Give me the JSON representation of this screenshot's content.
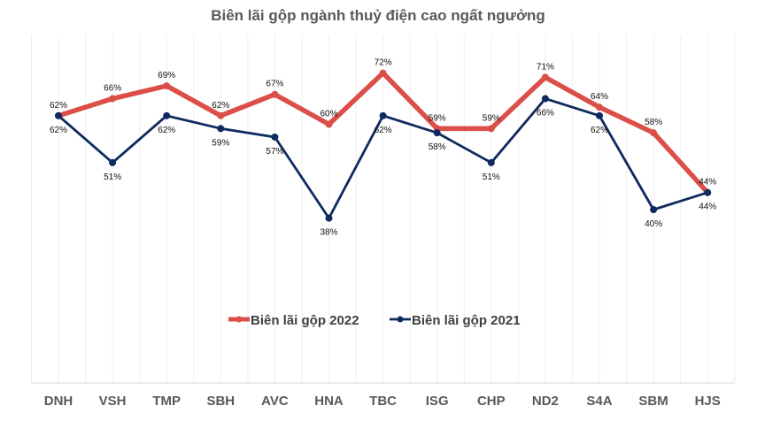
{
  "chart_data": {
    "type": "line",
    "title": "Biên lãi gộp ngành thuỷ điện cao ngất ngưởng",
    "categories": [
      "DNH",
      "VSH",
      "TMP",
      "SBH",
      "AVC",
      "HNA",
      "TBC",
      "ISG",
      "CHP",
      "ND2",
      "S4A",
      "SBM",
      "HJS"
    ],
    "series": [
      {
        "name": "Biên lãi gộp  2022",
        "color": "#DC4E48",
        "values": [
          62,
          66,
          69,
          62,
          67,
          60,
          72,
          59,
          59,
          71,
          64,
          58,
          44
        ]
      },
      {
        "name": "Biên lãi gộp  2021",
        "color": "#0E2A5E",
        "values": [
          62,
          51,
          62,
          59,
          57,
          38,
          62,
          58,
          51,
          66,
          62,
          40,
          44
        ]
      }
    ],
    "value_suffix": "%",
    "ylim": [
      0,
      80
    ],
    "grid": "vertical",
    "legend": "center"
  }
}
